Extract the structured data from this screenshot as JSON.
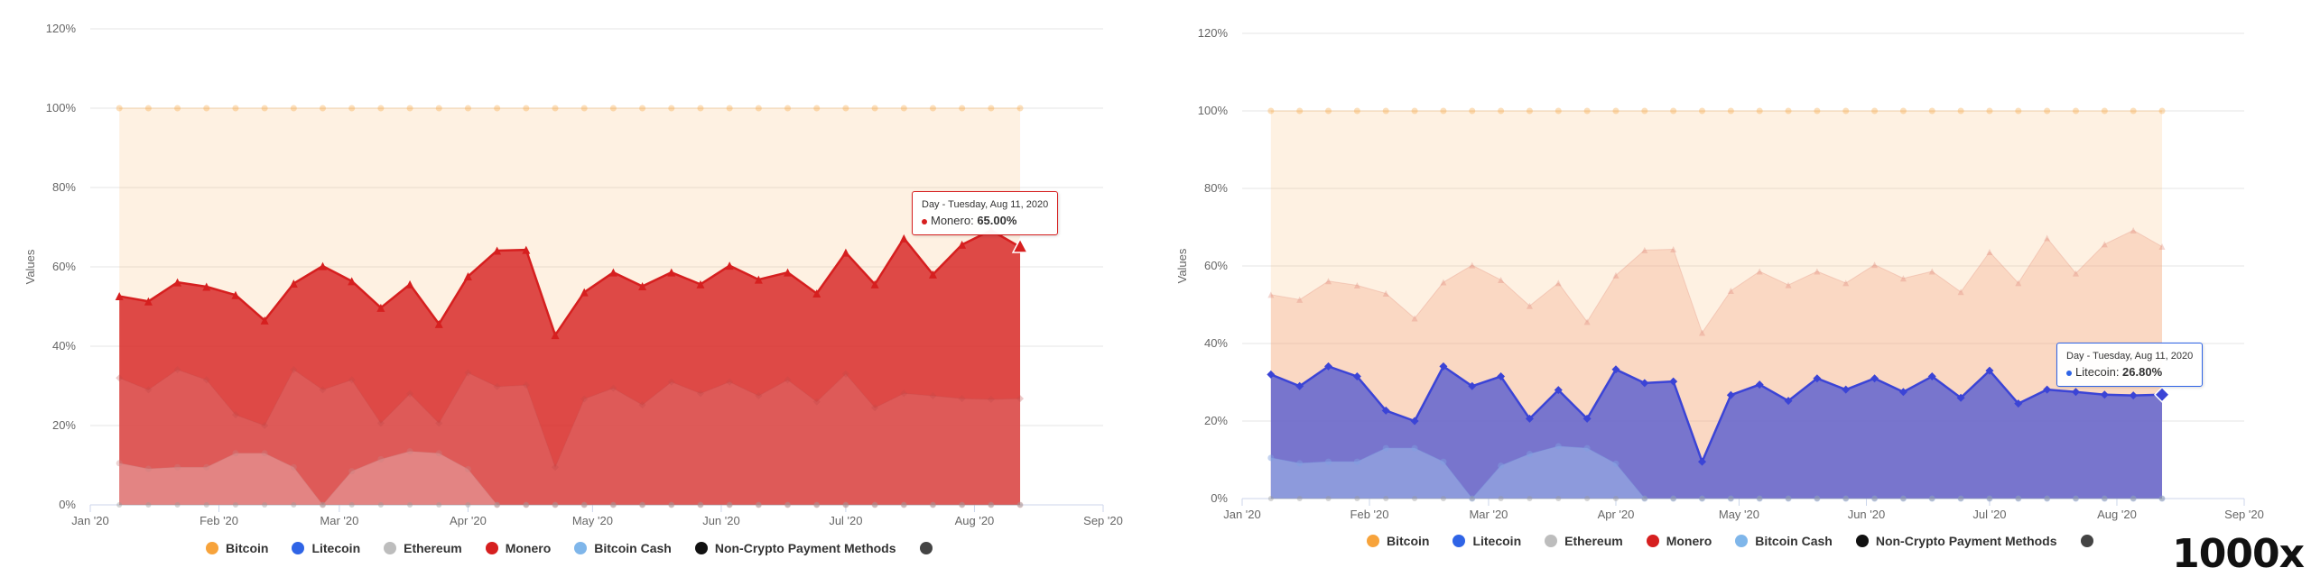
{
  "colors": {
    "bitcoin": "#f7a33b",
    "litecoin": "#2f64e6",
    "ethereum": "#bdbdbd",
    "monero": "#d61f1f",
    "bitcoin_cash": "#7fb6ea",
    "non_crypto": "#111111",
    "other": "#444444",
    "background_fill": "#fdebdb"
  },
  "legend": [
    {
      "key": "bitcoin",
      "label": "Bitcoin"
    },
    {
      "key": "litecoin",
      "label": "Litecoin"
    },
    {
      "key": "ethereum",
      "label": "Ethereum"
    },
    {
      "key": "monero",
      "label": "Monero"
    },
    {
      "key": "bitcoin_cash",
      "label": "Bitcoin Cash"
    },
    {
      "key": "non_crypto",
      "label": "Non-Crypto Payment Methods"
    },
    {
      "key": "other",
      "label": ""
    }
  ],
  "charts": [
    {
      "highlight_series": "Monero",
      "tooltip": {
        "header": "Day - Tuesday, Aug 11, 2020",
        "series": "Monero",
        "value_text": "65.00%"
      }
    },
    {
      "highlight_series": "Litecoin",
      "tooltip": {
        "header": "Day - Tuesday, Aug 11, 2020",
        "series": "Litecoin",
        "value_text": "26.80%"
      }
    }
  ],
  "chart_data": {
    "type": "area",
    "ylabel": "Values",
    "y_ticks": [
      "0%",
      "20%",
      "40%",
      "60%",
      "80%",
      "100%",
      "120%"
    ],
    "ylim": [
      0,
      120
    ],
    "x_ticks": [
      "Jan '20",
      "Feb '20",
      "Mar '20",
      "Apr '20",
      "May '20",
      "Jun '20",
      "Jul '20",
      "Aug '20",
      "Sep '20"
    ],
    "x_range_days": [
      0,
      244
    ],
    "series_start_day": 7,
    "series_step_days": 7,
    "series": [
      {
        "name": "Bitcoin",
        "values": [
          100,
          100,
          100,
          100,
          100,
          100,
          100,
          100,
          100,
          100,
          100,
          100,
          100,
          100,
          100,
          100,
          100,
          100,
          100,
          100,
          100,
          100,
          100,
          100,
          100,
          100,
          100,
          100,
          100,
          100,
          100,
          100
        ]
      },
      {
        "name": "Monero",
        "values": [
          52.6,
          51.3,
          56.1,
          55.0,
          52.9,
          46.5,
          55.8,
          60.2,
          56.4,
          49.7,
          55.6,
          45.6,
          57.6,
          64.1,
          64.3,
          42.8,
          53.6,
          58.6,
          55.1,
          58.6,
          55.6,
          60.3,
          56.8,
          58.6,
          53.3,
          63.6,
          55.6,
          67.2,
          58.1,
          65.6,
          69.2,
          65.0
        ]
      },
      {
        "name": "Litecoin",
        "values": [
          32.0,
          29.0,
          34.1,
          31.5,
          22.7,
          20.0,
          34.1,
          29.0,
          31.5,
          20.6,
          28.0,
          20.6,
          33.3,
          29.8,
          30.2,
          9.5,
          26.7,
          29.4,
          25.2,
          31.0,
          28.1,
          31.0,
          27.5,
          31.5,
          26.0,
          33.0,
          24.5,
          28.1,
          27.5,
          26.8,
          26.6,
          26.8
        ]
      },
      {
        "name": "Bitcoin Cash",
        "values": [
          10.5,
          9.1,
          9.5,
          9.5,
          13.0,
          13.0,
          9.5,
          0,
          8.5,
          11.5,
          13.5,
          13.0,
          9.0,
          0,
          0,
          0,
          0,
          0,
          0,
          0,
          0,
          0,
          0,
          0,
          0,
          0,
          0,
          0,
          0,
          0,
          0,
          0
        ]
      },
      {
        "name": "Ethereum",
        "values": [
          0,
          0,
          0,
          0,
          0,
          0,
          0,
          0,
          0,
          0,
          0,
          0,
          0,
          0,
          0,
          0,
          0,
          0,
          0,
          0,
          0,
          0,
          0,
          0,
          0,
          0,
          0,
          0,
          0,
          0,
          0,
          0
        ]
      }
    ]
  },
  "brand_text": "1000x"
}
